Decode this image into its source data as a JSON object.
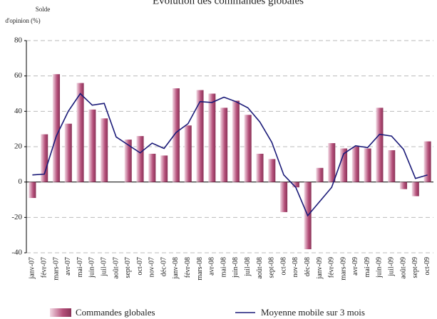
{
  "chart_data": {
    "type": "bar-line",
    "title": "Évolution des commandes globales",
    "y_label": [
      "Solde",
      "d'opinion (%)"
    ],
    "categories": [
      "janv-07",
      "févr-07",
      "mars-07",
      "avr-07",
      "mai-07",
      "juin-07",
      "juil-07",
      "août-07",
      "sept-07",
      "oct-07",
      "nov-07",
      "déc-07",
      "janv-08",
      "févr-08",
      "mars-08",
      "avr-08",
      "mai-08",
      "juin-08",
      "juil-08",
      "août-08",
      "sept-08",
      "oct-08",
      "nov-08",
      "déc-08",
      "janv-09",
      "févr-09",
      "mars-09",
      "avr-09",
      "mai-09",
      "juin-09",
      "juil-09",
      "août-09",
      "sept-09",
      "oct-09"
    ],
    "series": [
      {
        "name": "Commandes globales",
        "type": "bar",
        "color": "#b5507a",
        "values": [
          -9,
          27,
          61,
          33,
          56,
          41,
          36,
          null,
          24,
          26,
          16,
          15,
          53,
          32,
          52,
          50,
          42,
          46,
          38,
          16,
          13,
          -17,
          -3,
          -38,
          8,
          22,
          19,
          20,
          19,
          42,
          18,
          -4,
          -8,
          23
        ]
      },
      {
        "name": "Moyenne mobile sur 3 mois",
        "type": "line",
        "color": "#1a1a78",
        "values": [
          4,
          4.5,
          26,
          40,
          50,
          43.5,
          44.5,
          25.5,
          21,
          16.5,
          22,
          19,
          28,
          33,
          45.5,
          45,
          48,
          45.5,
          42,
          34,
          22.5,
          4,
          -3,
          -19,
          -11,
          -3,
          16,
          20.5,
          19.5,
          27,
          26,
          18.5,
          2,
          4
        ]
      }
    ],
    "ylim": [
      -40,
      80
    ],
    "yticks": [
      -40,
      -20,
      0,
      20,
      40,
      60,
      80
    ],
    "grid": true
  }
}
